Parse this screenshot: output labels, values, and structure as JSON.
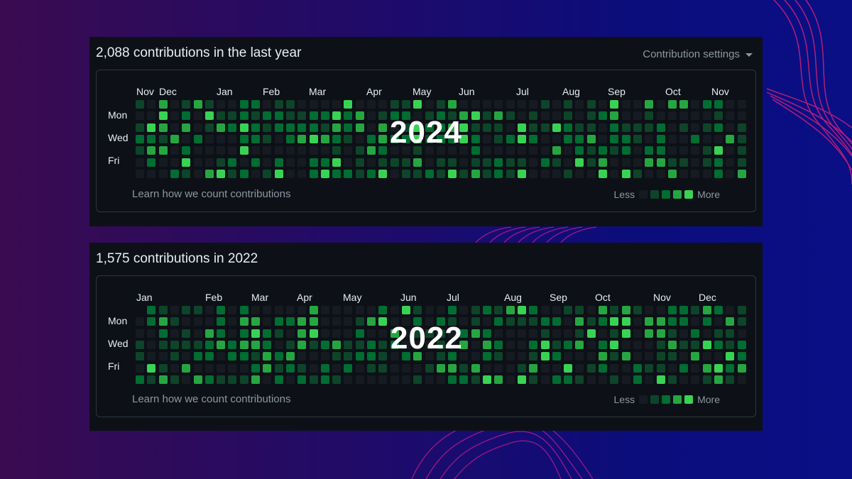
{
  "colors": {
    "level0": "#161b22",
    "level1": "#0e4429",
    "level2": "#006d32",
    "level3": "#26a641",
    "level4": "#39d353",
    "background_start": "#3a0b50",
    "background_end": "#0a0f85",
    "wave": "#d0207a"
  },
  "cards": [
    {
      "title": "2,088 contributions in the last year",
      "settings_label": "Contribution settings",
      "months": [
        "Nov",
        "Dec",
        "Jan",
        "Feb",
        "Mar",
        "Apr",
        "May",
        "Jun",
        "Jul",
        "Aug",
        "Sep",
        "Oct",
        "Nov"
      ],
      "day_labels": [
        "Mon",
        "Wed",
        "Fri"
      ],
      "year_overlay": "2024",
      "learn_link": "Learn how we count contributions",
      "legend": {
        "less": "Less",
        "more": "More"
      }
    },
    {
      "title": "1,575 contributions in 2022",
      "settings_label": "",
      "months": [
        "Jan",
        "Feb",
        "Mar",
        "Apr",
        "May",
        "Jun",
        "Jul",
        "Aug",
        "Sep",
        "Oct",
        "Nov",
        "Dec"
      ],
      "day_labels": [
        "Mon",
        "Wed",
        "Fri"
      ],
      "year_overlay": "2022",
      "learn_link": "Learn how we count contributions",
      "legend": {
        "less": "Less",
        "more": "More"
      }
    }
  ]
}
